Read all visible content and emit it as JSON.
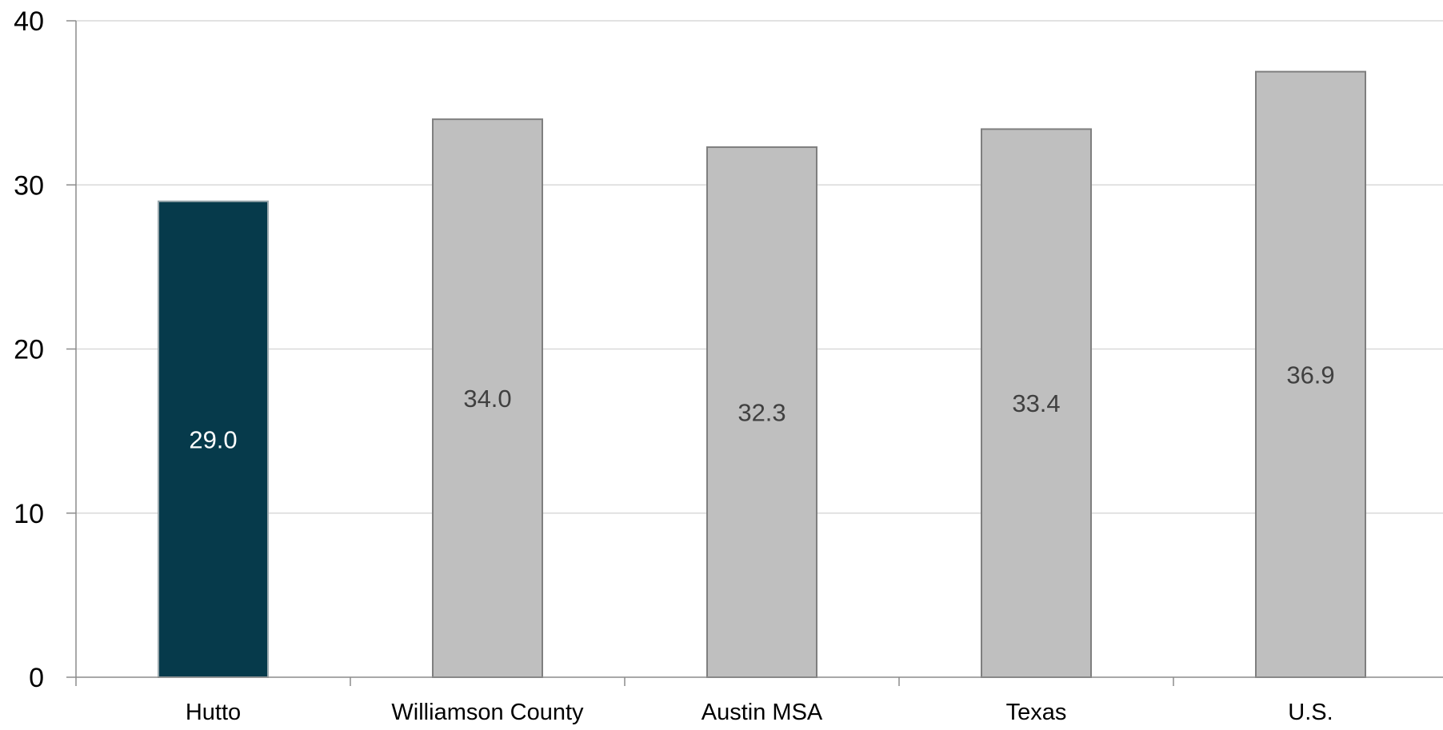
{
  "chart_data": {
    "type": "bar",
    "title": "",
    "xlabel": "",
    "ylabel": "",
    "categories": [
      "Hutto",
      "Williamson County",
      "Austin MSA",
      "Texas",
      "U.S."
    ],
    "values": [
      29.0,
      34.0,
      32.3,
      33.4,
      36.9
    ],
    "value_labels": [
      "29.0",
      "34.0",
      "32.3",
      "33.4",
      "36.9"
    ],
    "ylim": [
      0,
      40
    ],
    "yticks": [
      0,
      10,
      20,
      30,
      40
    ],
    "ytick_labels": [
      "0",
      "10",
      "20",
      "30",
      "40"
    ],
    "grid": true,
    "legend": "none",
    "colors": {
      "highlight": "#063a4b",
      "default": "#bfbfbf",
      "bar_border": "#7f7f7f",
      "grid": "#d9d9d9",
      "axis": "#8c8c8c",
      "label_on_dark": "#ffffff",
      "label_on_light": "#404040",
      "text": "#000000"
    },
    "highlight_index": 0
  }
}
